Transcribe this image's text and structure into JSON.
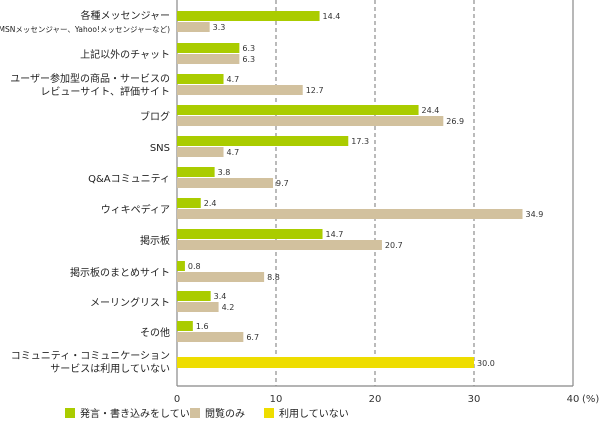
{
  "chart_data": {
    "type": "bar",
    "orientation": "horizontal",
    "categories": [
      [
        "各種メッセンジャー",
        "(MSNメッセンジャー、Yahoo!メッセンジャーなど)"
      ],
      [
        "上記以外のチャット"
      ],
      [
        "ユーザー参加型の商品・サービスの",
        "レビューサイト、評価サイト"
      ],
      [
        "ブログ"
      ],
      [
        "SNS"
      ],
      [
        "Q&Aコミュニティ"
      ],
      [
        "ウィキペディア"
      ],
      [
        "掲示板"
      ],
      [
        "掲示板のまとめサイト"
      ],
      [
        "メーリングリスト"
      ],
      [
        "その他"
      ],
      [
        "コミュニティ・コミュニケーション",
        "サービスは利用していない"
      ]
    ],
    "series": [
      {
        "name": "発言・書き込みをしている",
        "color": "#aacc00",
        "values": [
          14.4,
          6.3,
          4.7,
          24.4,
          17.3,
          3.8,
          2.4,
          14.7,
          0.8,
          3.4,
          1.6,
          null
        ]
      },
      {
        "name": "閲覧のみ",
        "color": "#d2c19e",
        "values": [
          3.3,
          6.3,
          12.7,
          26.9,
          4.7,
          9.7,
          34.9,
          20.7,
          8.8,
          4.2,
          6.7,
          null
        ]
      },
      {
        "name": "利用していない",
        "color": "#eedd00",
        "values": [
          null,
          null,
          null,
          null,
          null,
          null,
          null,
          null,
          null,
          null,
          null,
          30.0
        ]
      }
    ],
    "value_labels": {
      "series0": [
        "14.4",
        "6.3",
        "4.7",
        "24.4",
        "17.3",
        "3.8",
        "2.4",
        "14.7",
        "0.8",
        "3.4",
        "1.6",
        ""
      ],
      "series1": [
        "3.3",
        "6.3",
        "12.7",
        "26.9",
        "4.7",
        "9.7",
        "34.9",
        "20.7",
        "8.8",
        "4.2",
        "6.7",
        ""
      ],
      "series2": [
        "",
        "",
        "",
        "",
        "",
        "",
        "",
        "",
        "",
        "",
        "",
        "30.0"
      ]
    },
    "xlim": [
      0,
      40
    ],
    "xticks": [
      "0",
      "10",
      "20",
      "30",
      "40"
    ],
    "xunit": "(%)",
    "grid": "vertical dashed",
    "legend": "bottom"
  }
}
